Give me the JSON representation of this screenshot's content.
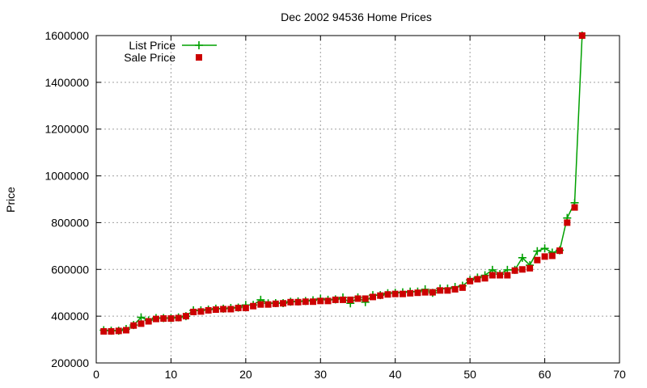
{
  "chart_data": {
    "type": "line",
    "title": "Dec 2002 94536 Home Prices",
    "xlabel": "",
    "ylabel": "Price",
    "xlim": [
      0,
      70
    ],
    "ylim": [
      200000,
      1600000
    ],
    "xticks": [
      "0",
      "10",
      "20",
      "30",
      "40",
      "50",
      "60",
      "70"
    ],
    "yticks": [
      "200000",
      "400000",
      "600000",
      "800000",
      "1000000",
      "1200000",
      "1400000",
      "1600000"
    ],
    "grid": true,
    "legend_position": "top-left",
    "x": [
      1,
      2,
      3,
      4,
      5,
      6,
      7,
      8,
      9,
      10,
      11,
      12,
      13,
      14,
      15,
      16,
      17,
      18,
      19,
      20,
      21,
      22,
      23,
      24,
      25,
      26,
      27,
      28,
      29,
      30,
      31,
      32,
      33,
      34,
      35,
      36,
      37,
      38,
      39,
      40,
      41,
      42,
      43,
      44,
      45,
      46,
      47,
      48,
      49,
      50,
      51,
      52,
      53,
      54,
      55,
      56,
      57,
      58,
      59,
      60,
      61,
      62,
      63,
      64,
      65
    ],
    "series": [
      {
        "name": "List Price",
        "color": "#00a000",
        "marker": "plus",
        "line": true,
        "values": [
          340000,
          338000,
          338000,
          345000,
          362000,
          395000,
          382000,
          392000,
          392000,
          392000,
          395000,
          400000,
          425000,
          425000,
          428000,
          432000,
          432000,
          435000,
          437000,
          448000,
          448000,
          470000,
          455000,
          456000,
          456000,
          462000,
          463000,
          465000,
          468000,
          475000,
          470000,
          472000,
          480000,
          455000,
          480000,
          460000,
          490000,
          490000,
          498000,
          500000,
          502000,
          505000,
          505000,
          515000,
          500000,
          518000,
          518000,
          525000,
          530000,
          555000,
          565000,
          575000,
          598000,
          580000,
          598000,
          598000,
          650000,
          618000,
          678000,
          690000,
          672000,
          682000,
          820000,
          885000,
          1600000
        ]
      },
      {
        "name": "Sale Price",
        "color": "#cc0000",
        "marker": "square",
        "line": false,
        "values": [
          335000,
          335000,
          337000,
          340000,
          360000,
          368000,
          378000,
          388000,
          390000,
          390000,
          392000,
          400000,
          418000,
          420000,
          425000,
          428000,
          430000,
          430000,
          435000,
          435000,
          443000,
          450000,
          450000,
          453000,
          455000,
          460000,
          460000,
          462000,
          462000,
          465000,
          465000,
          470000,
          470000,
          470000,
          475000,
          475000,
          482000,
          488000,
          493000,
          495000,
          495000,
          498000,
          500000,
          502000,
          502000,
          510000,
          510000,
          515000,
          522000,
          550000,
          558000,
          562000,
          575000,
          575000,
          575000,
          595000,
          600000,
          605000,
          640000,
          655000,
          658000,
          680000,
          800000,
          865000,
          1600000
        ]
      }
    ]
  }
}
